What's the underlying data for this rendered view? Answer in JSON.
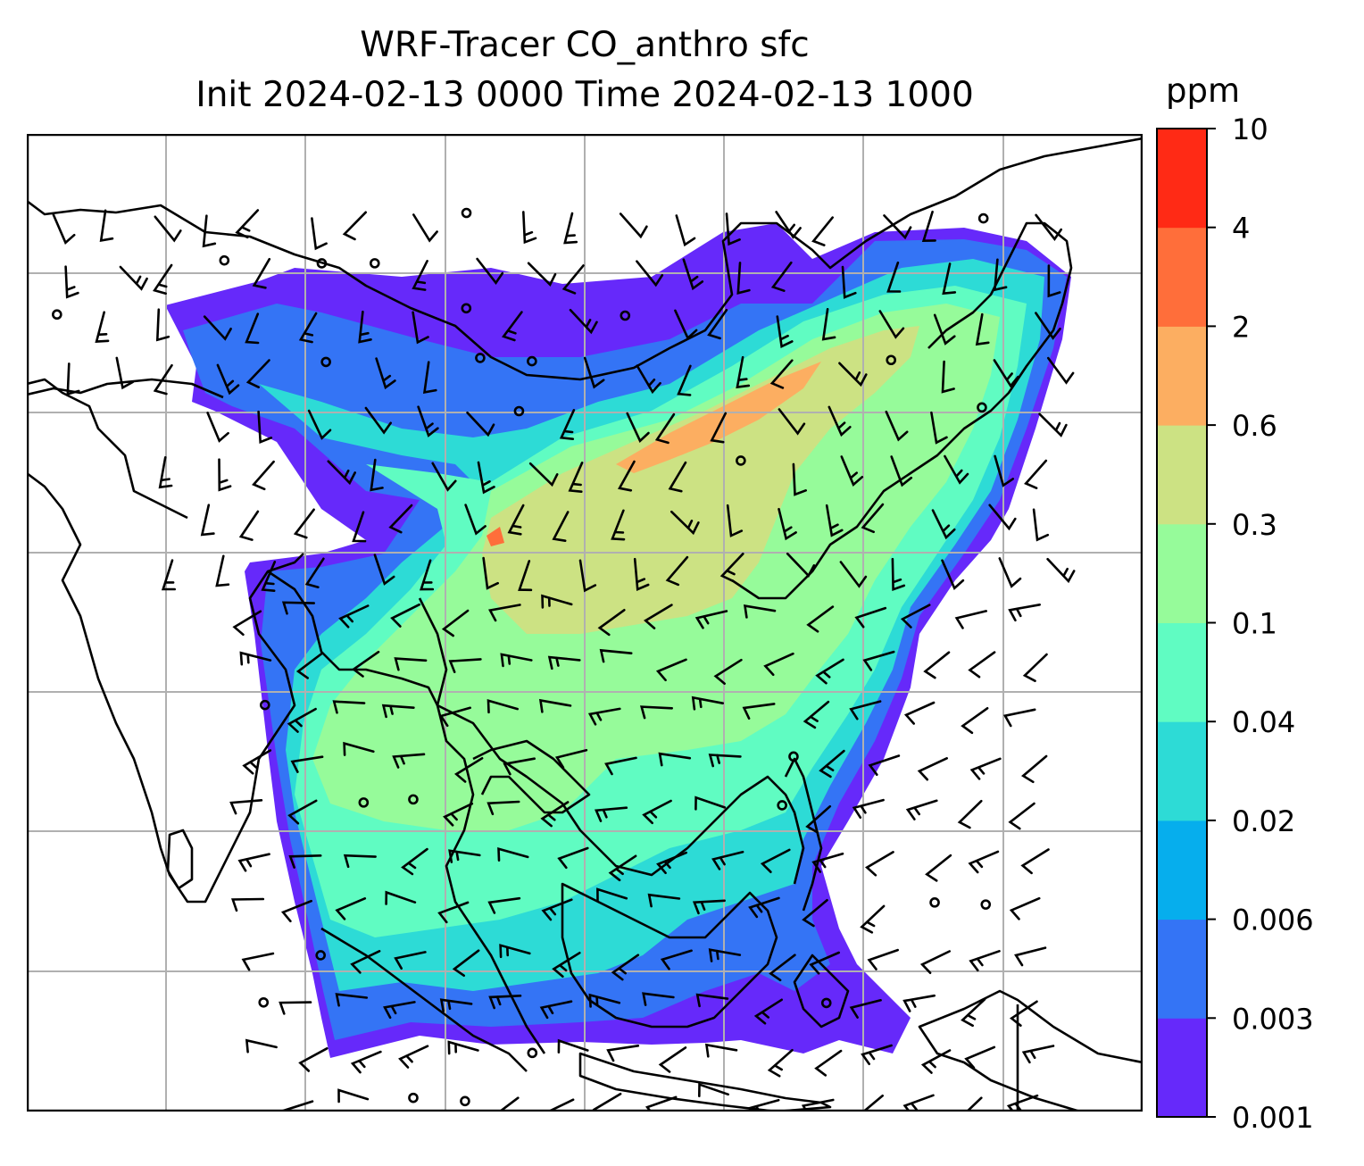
{
  "title": {
    "line1": "WRF-Tracer CO_anthro sfc",
    "line2": "Init 2024-02-13 0000 Time 2024-02-13 1000"
  },
  "colorbar": {
    "unit": "ppm",
    "ticks": [
      "0.001",
      "0.003",
      "0.006",
      "0.02",
      "0.04",
      "0.1",
      "0.3",
      "0.6",
      "2",
      "4",
      "10"
    ],
    "colors": [
      "#6629fa",
      "#3474f5",
      "#06aeed",
      "#2ddbd6",
      "#60fcc2",
      "#96fb9a",
      "#cce283",
      "#fcae61",
      "#ff6e3a",
      "#ff2a15"
    ]
  },
  "map": {
    "gridline_color": "#b0b0b0",
    "coastline_color": "#000000",
    "wind_barbs": true,
    "fill_colors": {
      "edge": "#6629fa",
      "outer": "#3474f5",
      "mid": "#2ddbd6",
      "inner": "#60fcc2",
      "core": "#96fb9a",
      "high": "#cce283",
      "peak": "#fcae61",
      "spot": "#ff6e3a"
    }
  }
}
